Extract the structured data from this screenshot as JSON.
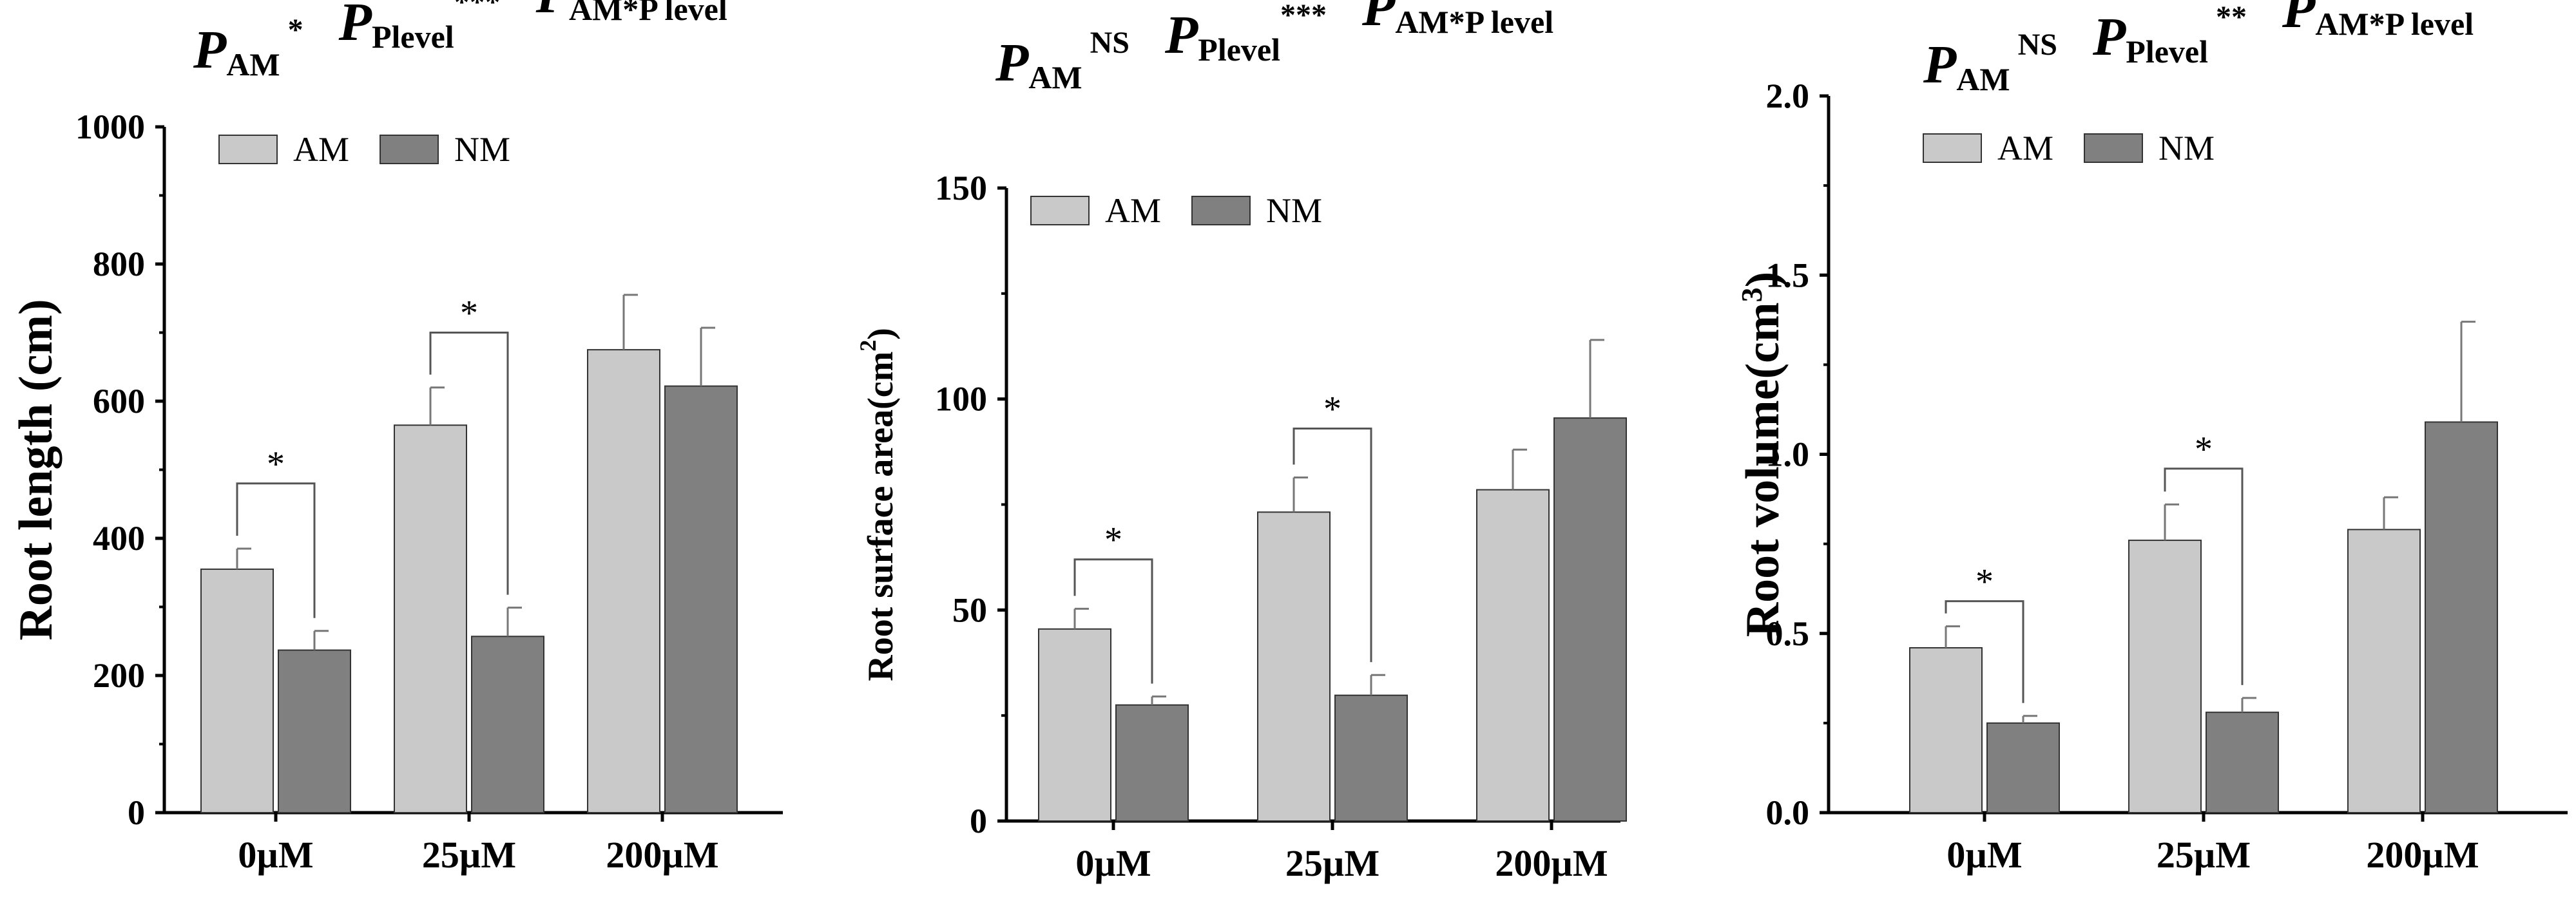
{
  "colors": {
    "am": "#c9c9c9",
    "nm": "#808080",
    "axis": "#000000",
    "bracket": "#555555",
    "error": "#777777"
  },
  "chart_data": [
    {
      "type": "bar",
      "title_terms": [
        {
          "p": "P",
          "sub": "AM",
          "sup": " *"
        },
        {
          "p": "P",
          "sub": "Plevel",
          "sup": "***"
        },
        {
          "p": "P",
          "sub": "AM*P level",
          "sup": " *"
        }
      ],
      "ylabel": "Root length (cm)",
      "ylabel_sup": "",
      "ylabel_tail": "",
      "ylim": [
        0,
        1000
      ],
      "yticks": [
        "0",
        "200",
        "400",
        "600",
        "800",
        "1000"
      ],
      "categories": [
        "0µM",
        "25µM",
        "200µM"
      ],
      "legend": [
        "AM",
        "NM"
      ],
      "series": [
        {
          "name": "AM",
          "values": [
            355,
            565,
            675
          ],
          "errors": [
            30,
            55,
            80
          ]
        },
        {
          "name": "NM",
          "values": [
            237,
            257,
            622
          ],
          "errors": [
            28,
            42,
            85
          ]
        }
      ],
      "brackets": [
        {
          "category_index": 0,
          "label": "*",
          "top": 480
        },
        {
          "category_index": 1,
          "label": "*",
          "top": 700
        }
      ]
    },
    {
      "type": "bar",
      "title_terms": [
        {
          "p": "P",
          "sub": "AM",
          "sup": " NS"
        },
        {
          "p": "P",
          "sub": "Plevel",
          "sup": "***"
        },
        {
          "p": "P",
          "sub": "AM*P level",
          "sup": "*"
        }
      ],
      "ylabel": "Root surface area(cm",
      "ylabel_sup": "2",
      "ylabel_tail": ")",
      "ylim": [
        0,
        150
      ],
      "yticks": [
        "0",
        "50",
        "100",
        "150"
      ],
      "categories": [
        "0µM",
        "25µM",
        "200µM"
      ],
      "legend": [
        "AM",
        "NM"
      ],
      "series": [
        {
          "name": "AM",
          "values": [
            45.5,
            73.2,
            78.5
          ],
          "errors": [
            4.8,
            8.2,
            9.5
          ]
        },
        {
          "name": "NM",
          "values": [
            27.5,
            29.8,
            95.5
          ],
          "errors": [
            2.0,
            4.8,
            18.5
          ]
        }
      ],
      "brackets": [
        {
          "category_index": 0,
          "label": "*",
          "top": 62
        },
        {
          "category_index": 1,
          "label": "*",
          "top": 93
        }
      ]
    },
    {
      "type": "bar",
      "title_terms": [
        {
          "p": "P",
          "sub": "AM",
          "sup": " NS"
        },
        {
          "p": "P",
          "sub": "Plevel",
          "sup": " **"
        },
        {
          "p": "P",
          "sub": "AM*P level",
          "sup": " *"
        }
      ],
      "ylabel": "Root volume(cm",
      "ylabel_sup": "3",
      "ylabel_tail": ")",
      "ylim": [
        0,
        2.0
      ],
      "yticks": [
        "0.0",
        "0.5",
        "1.0",
        "1.5",
        "2.0"
      ],
      "categories": [
        "0µM",
        "25µM",
        "200µM"
      ],
      "legend": [
        "AM",
        "NM"
      ],
      "series": [
        {
          "name": "AM",
          "values": [
            0.46,
            0.76,
            0.79
          ],
          "errors": [
            0.06,
            0.1,
            0.09
          ]
        },
        {
          "name": "NM",
          "values": [
            0.25,
            0.28,
            1.09
          ],
          "errors": [
            0.02,
            0.04,
            0.28
          ]
        }
      ],
      "brackets": [
        {
          "category_index": 0,
          "label": "*",
          "top": 0.59
        },
        {
          "category_index": 1,
          "label": "*",
          "top": 0.96
        }
      ]
    }
  ]
}
